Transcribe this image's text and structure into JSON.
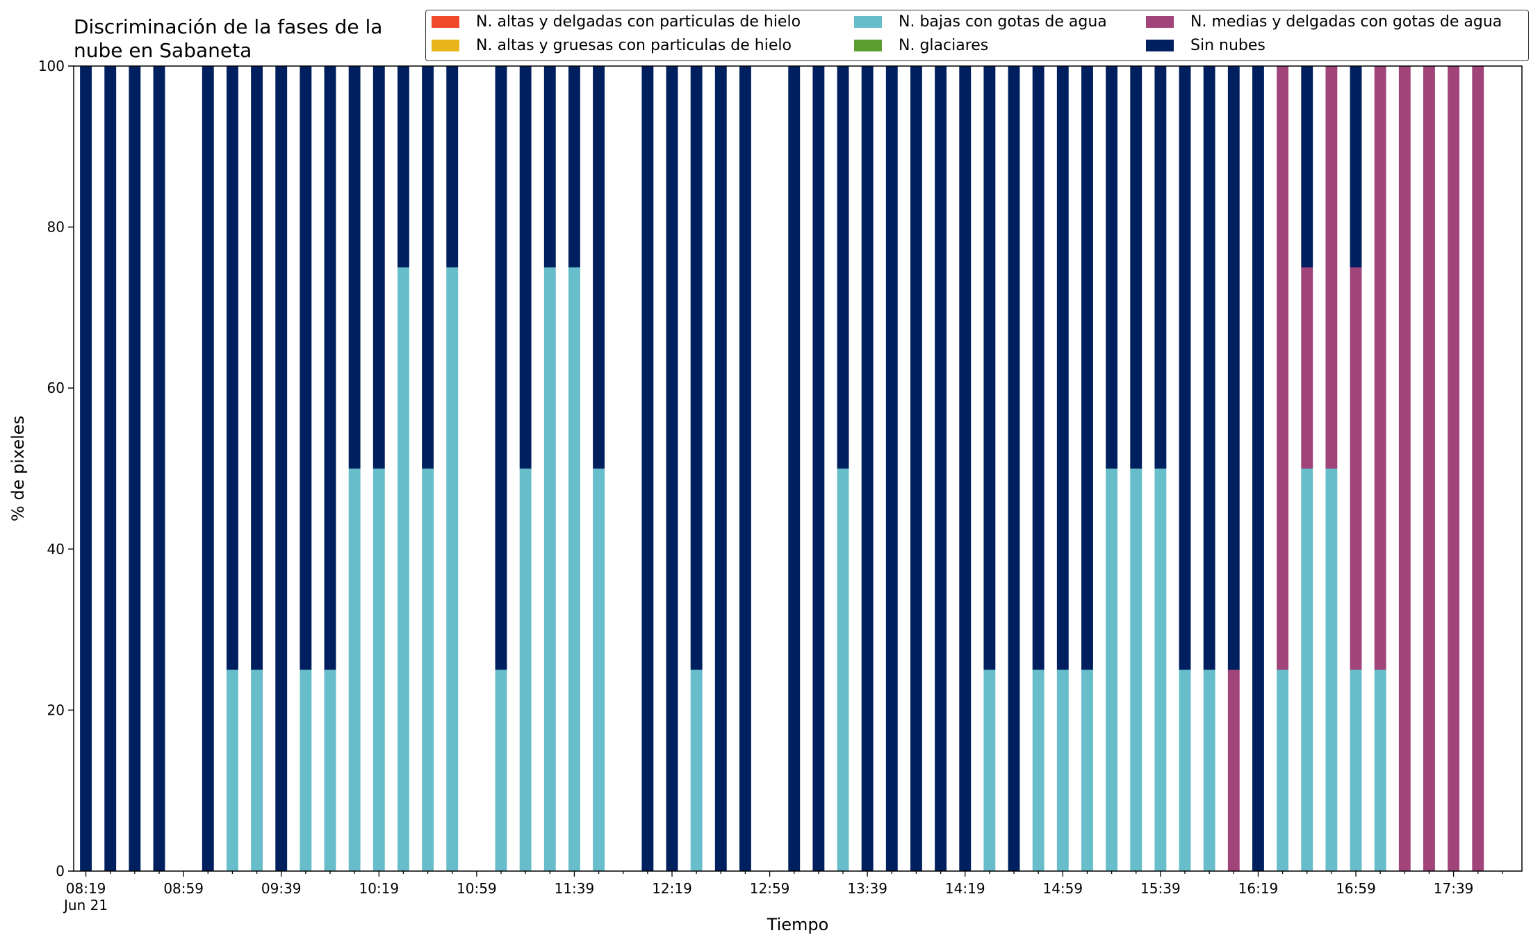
{
  "chart_data": {
    "type": "bar",
    "stacked": true,
    "title": "Discriminación de la fases de la\nnube en Sabaneta",
    "xlabel": "Tiempo",
    "ylabel": "% de pixeles",
    "ylim": [
      0,
      100
    ],
    "yticks": [
      0,
      20,
      40,
      60,
      80,
      100
    ],
    "xtick_labels": [
      "08:19\nJun 21",
      "08:59",
      "09:39",
      "10:19",
      "10:59",
      "11:39",
      "12:19",
      "12:59",
      "13:39",
      "14:19",
      "14:59",
      "15:39",
      "16:19",
      "16:59",
      "17:39"
    ],
    "slot_interval_minutes": 10,
    "slot_count": 59,
    "slots": [
      "08:19",
      "08:29",
      "08:39",
      "08:49",
      "08:59",
      "09:09",
      "09:19",
      "09:29",
      "09:39",
      "09:49",
      "09:59",
      "10:09",
      "10:19",
      "10:29",
      "10:39",
      "10:49",
      "10:59",
      "11:09",
      "11:19",
      "11:29",
      "11:39",
      "11:49",
      "11:59",
      "12:09",
      "12:19",
      "12:29",
      "12:39",
      "12:49",
      "12:59",
      "13:09",
      "13:19",
      "13:29",
      "13:39",
      "13:49",
      "13:59",
      "14:09",
      "14:19",
      "14:29",
      "14:39",
      "14:49",
      "14:59",
      "15:09",
      "15:19",
      "15:29",
      "15:39",
      "15:49",
      "15:59",
      "16:09",
      "16:19",
      "16:29",
      "16:39",
      "16:49",
      "16:59",
      "17:09",
      "17:19",
      "17:29",
      "17:39",
      "17:49",
      "17:59"
    ],
    "categories": [
      "08:19",
      "08:29",
      "08:39",
      "08:49",
      "09:09",
      "09:19",
      "09:29",
      "09:39",
      "09:49",
      "09:59",
      "10:09",
      "10:19",
      "10:29",
      "10:39",
      "10:49",
      "11:09",
      "11:19",
      "11:29",
      "11:39",
      "11:49",
      "12:09",
      "12:19",
      "12:29",
      "12:39",
      "12:49",
      "13:09",
      "13:19",
      "13:29",
      "13:39",
      "13:49",
      "13:59",
      "14:09",
      "14:19",
      "14:29",
      "14:39",
      "14:49",
      "14:59",
      "15:09",
      "15:19",
      "15:29",
      "15:39",
      "15:49",
      "15:59",
      "16:09",
      "16:19",
      "16:29",
      "16:39",
      "16:49",
      "16:59",
      "17:09",
      "17:19",
      "17:29",
      "17:39",
      "17:49"
    ],
    "legend_position": "top",
    "series": [
      {
        "name": "N. altas y delgadas con particulas de hielo",
        "color": "#f04a2a",
        "values": [
          0,
          0,
          0,
          0,
          0,
          0,
          0,
          0,
          0,
          0,
          0,
          0,
          0,
          0,
          0,
          0,
          0,
          0,
          0,
          0,
          0,
          0,
          0,
          0,
          0,
          0,
          0,
          0,
          0,
          0,
          0,
          0,
          0,
          0,
          0,
          0,
          0,
          0,
          0,
          0,
          0,
          0,
          0,
          0,
          0,
          0,
          0,
          0,
          0,
          0,
          0,
          0,
          0,
          0
        ]
      },
      {
        "name": "N. altas y gruesas con particulas de hielo",
        "color": "#e8b61a",
        "values": [
          0,
          0,
          0,
          0,
          0,
          0,
          0,
          0,
          0,
          0,
          0,
          0,
          0,
          0,
          0,
          0,
          0,
          0,
          0,
          0,
          0,
          0,
          0,
          0,
          0,
          0,
          0,
          0,
          0,
          0,
          0,
          0,
          0,
          0,
          0,
          0,
          0,
          0,
          0,
          0,
          0,
          0,
          0,
          0,
          0,
          0,
          0,
          0,
          0,
          0,
          0,
          0,
          0,
          0
        ]
      },
      {
        "name": "N. bajas con gotas de agua",
        "color": "#67bdc9",
        "values": [
          0,
          0,
          0,
          0,
          0,
          25,
          25,
          0,
          25,
          25,
          50,
          50,
          75,
          50,
          75,
          25,
          50,
          75,
          75,
          50,
          0,
          0,
          25,
          0,
          0,
          0,
          0,
          50,
          0,
          0,
          0,
          0,
          0,
          25,
          0,
          25,
          25,
          25,
          50,
          50,
          50,
          25,
          25,
          0,
          0,
          25,
          50,
          50,
          25,
          25,
          0,
          0,
          0,
          0
        ]
      },
      {
        "name": "N. glaciares",
        "color": "#5c9e31",
        "values": [
          0,
          0,
          0,
          0,
          0,
          0,
          0,
          0,
          0,
          0,
          0,
          0,
          0,
          0,
          0,
          0,
          0,
          0,
          0,
          0,
          0,
          0,
          0,
          0,
          0,
          0,
          0,
          0,
          0,
          0,
          0,
          0,
          0,
          0,
          0,
          0,
          0,
          0,
          0,
          0,
          0,
          0,
          0,
          0,
          0,
          0,
          0,
          0,
          0,
          0,
          0,
          0,
          0,
          0
        ]
      },
      {
        "name": "N. medias y delgadas con gotas de agua",
        "color": "#a04479",
        "values": [
          0,
          0,
          0,
          0,
          0,
          0,
          0,
          0,
          0,
          0,
          0,
          0,
          0,
          0,
          0,
          0,
          0,
          0,
          0,
          0,
          0,
          0,
          0,
          0,
          0,
          0,
          0,
          0,
          0,
          0,
          0,
          0,
          0,
          0,
          0,
          0,
          0,
          0,
          0,
          0,
          0,
          0,
          0,
          25,
          0,
          75,
          25,
          50,
          50,
          75,
          100,
          100,
          100,
          100
        ]
      },
      {
        "name": "Sin nubes",
        "color": "#001f5e",
        "values": [
          100,
          100,
          100,
          100,
          100,
          75,
          75,
          100,
          75,
          75,
          50,
          50,
          25,
          50,
          25,
          75,
          50,
          25,
          25,
          50,
          100,
          100,
          75,
          100,
          100,
          100,
          100,
          50,
          100,
          100,
          100,
          100,
          100,
          75,
          100,
          75,
          75,
          75,
          50,
          50,
          50,
          75,
          75,
          75,
          100,
          0,
          25,
          0,
          25,
          0,
          0,
          0,
          0,
          0
        ]
      }
    ]
  }
}
